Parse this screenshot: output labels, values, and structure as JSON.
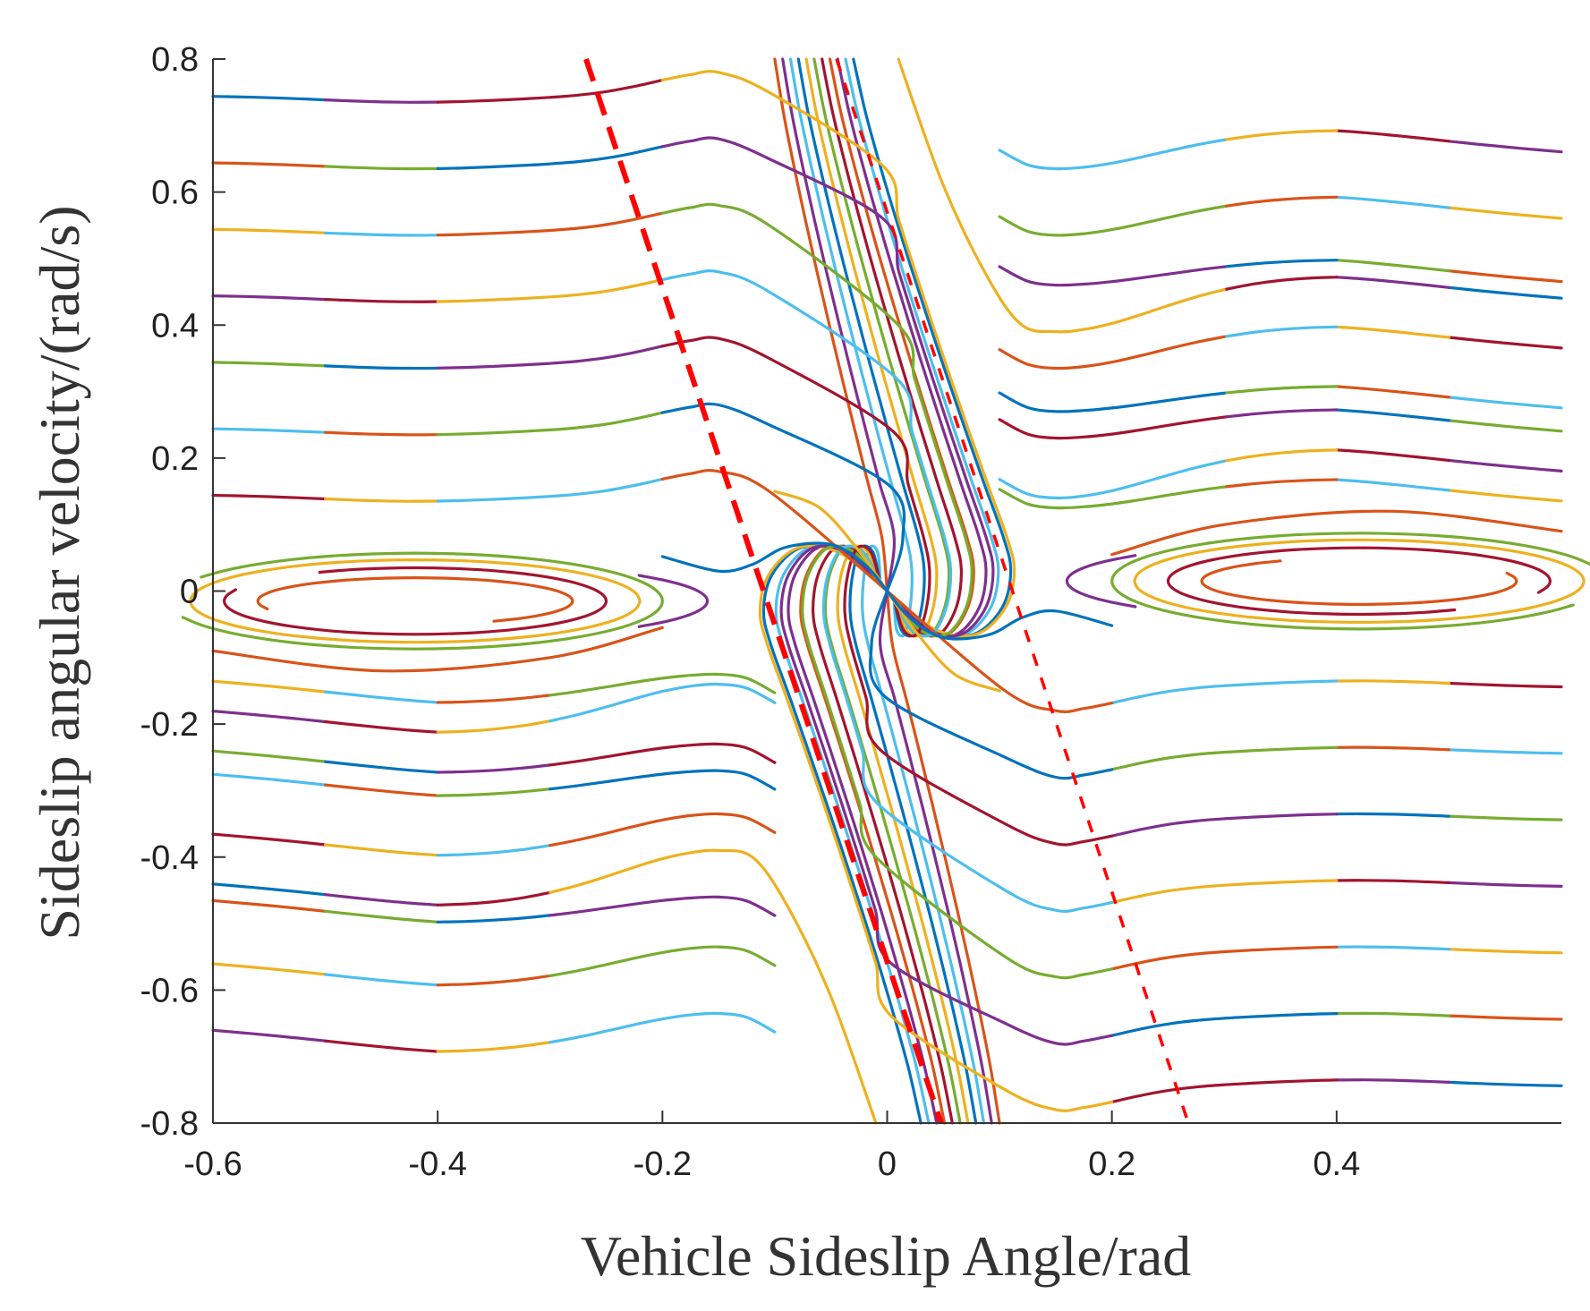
{
  "chart_data": {
    "type": "line",
    "subtype": "phase-portrait",
    "title": "",
    "xlabel": "Vehicle Sideslip Angle/rad",
    "ylabel": "Sideslip angular velocity/(rad/s)",
    "xlim": [
      -0.6,
      0.6
    ],
    "ylim": [
      -0.8,
      0.8
    ],
    "grid": false,
    "xticks": [
      -0.6,
      -0.4,
      -0.2,
      0,
      0.2,
      0.4
    ],
    "xtick_labels": [
      "-0.6",
      "-0.4",
      "-0.2",
      "0",
      "0.2",
      "0.4"
    ],
    "yticks": [
      0.8,
      0.6,
      0.4,
      0.2,
      0,
      -0.2,
      -0.4,
      -0.6,
      -0.8
    ],
    "ytick_labels": [
      "0.8",
      "0.6",
      "0.4",
      "0.2",
      "0",
      "-0.2",
      "-0.4",
      "-0.6",
      "-0.8"
    ],
    "colors": [
      "#0072BD",
      "#D95319",
      "#EDB120",
      "#7E2F8E",
      "#77AC30",
      "#4DBEEE",
      "#A2142F"
    ],
    "symmetry": "point-symmetric about origin (each family also drawn mirrored)",
    "stable_region_boundaries": [
      {
        "name": "boundary-thick-dashed",
        "color": "#FF0000",
        "style": "dashed-thick",
        "from": [
          -0.268,
          0.8
        ],
        "to": [
          0.048,
          -0.8
        ]
      },
      {
        "name": "boundary-thin-dashed",
        "color": "#FF0000",
        "style": "dashed-thin",
        "from": [
          -0.045,
          0.8
        ],
        "to": [
          0.268,
          -0.8
        ]
      }
    ],
    "upper_left_family": {
      "y_start": [
        0.745,
        0.645,
        0.545,
        0.445,
        0.345,
        0.245,
        0.145
      ],
      "peak_x": -0.15
    },
    "steep_band_starts_x_at_y_0_8": [
      -0.1,
      -0.093,
      -0.086,
      -0.079,
      -0.072,
      -0.065,
      -0.058,
      -0.051,
      -0.044,
      -0.037,
      -0.03
    ],
    "lower_left_family": [
      {
        "y_left": -0.16,
        "y_peak": -0.125
      },
      {
        "y_left": -0.205,
        "y_peak": -0.14
      },
      {
        "y_left": -0.265,
        "y_peak": -0.23
      },
      {
        "y_left": -0.3,
        "y_peak": -0.27
      },
      {
        "y_left": -0.39,
        "y_peak": -0.335
      },
      {
        "y_left": -0.465,
        "y_peak": -0.39,
        "continues_to_bottom": true
      },
      {
        "y_left": -0.49,
        "y_peak": -0.46
      },
      {
        "y_left": -0.585,
        "y_peak": -0.535
      },
      {
        "y_left": -0.685,
        "y_peak": -0.635
      }
    ],
    "equilibrium_orbits": [
      {
        "center": [
          -0.42,
          -0.015
        ],
        "rx": 0.2,
        "ry": 0.062,
        "angle_range_deg": [
          0,
          360
        ]
      },
      {
        "center": [
          -0.42,
          -0.015
        ],
        "rx": 0.22,
        "ry": 0.072,
        "angle_range_deg": [
          -160,
          150
        ]
      },
      {
        "center": [
          -0.42,
          -0.015
        ],
        "rx": 0.17,
        "ry": 0.05,
        "angle_range_deg": [
          -200,
          120
        ]
      },
      {
        "center": [
          -0.42,
          -0.015
        ],
        "rx": 0.14,
        "ry": 0.035,
        "angle_range_deg": [
          -60,
          200
        ]
      },
      {
        "center": [
          -0.42,
          -0.015
        ],
        "rx": 0.26,
        "ry": 0.06,
        "angle_range_deg": [
          -40,
          40
        ]
      }
    ],
    "extra_trajectories": [
      [
        [
          -0.1,
          0.15
        ],
        [
          -0.06,
          0.125
        ],
        [
          -0.025,
          0.06
        ],
        [
          0,
          0
        ]
      ],
      [
        [
          -0.2,
          0.052
        ],
        [
          -0.15,
          0.03
        ],
        [
          -0.12,
          0.04
        ],
        [
          -0.09,
          0.066
        ],
        [
          -0.05,
          0.07
        ],
        [
          -0.02,
          0.04
        ],
        [
          0,
          0
        ]
      ],
      [
        [
          -0.6,
          -0.09
        ],
        [
          -0.45,
          -0.12
        ],
        [
          -0.3,
          -0.1
        ],
        [
          -0.2,
          -0.055
        ]
      ]
    ]
  }
}
